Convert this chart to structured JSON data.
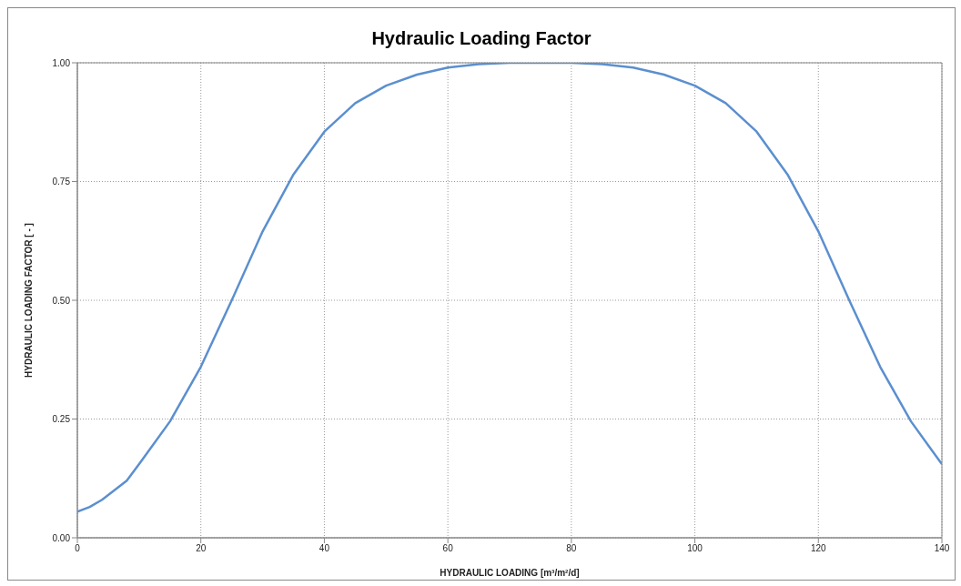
{
  "chart_data": {
    "type": "line",
    "title": "Hydraulic Loading Factor",
    "xlabel": "HYDRAULIC LOADING [m³/m²/d]",
    "ylabel": "HYDRAULIC LOADING FACTOR [ - ]",
    "x": [
      0,
      2,
      4,
      8,
      10,
      15,
      20,
      25,
      30,
      35,
      40,
      45,
      50,
      55,
      60,
      65,
      70,
      75,
      80,
      85,
      90,
      95,
      100,
      105,
      110,
      115,
      120,
      125,
      130,
      135,
      140
    ],
    "series": [
      {
        "color": "#5b8fcf",
        "values": [
          0.055,
          0.065,
          0.08,
          0.12,
          0.155,
          0.245,
          0.36,
          0.5,
          0.645,
          0.765,
          0.855,
          0.915,
          0.952,
          0.975,
          0.99,
          0.997,
          1.0,
          1.0,
          1.0,
          0.997,
          0.99,
          0.975,
          0.952,
          0.915,
          0.855,
          0.765,
          0.645,
          0.5,
          0.36,
          0.245,
          0.155
        ]
      }
    ],
    "xlim": [
      0,
      140
    ],
    "xticks": [
      0,
      20,
      40,
      60,
      80,
      100,
      120,
      140
    ],
    "ylim": [
      0,
      1
    ],
    "yticks": [
      {
        "value": 0,
        "label": "0.00"
      },
      {
        "value": 0.25,
        "label": "0.25"
      },
      {
        "value": 0.5,
        "label": "0.50"
      },
      {
        "value": 0.75,
        "label": "0.75"
      },
      {
        "value": 1,
        "label": "1.00"
      }
    ],
    "grid": true,
    "legend": false,
    "marker": "none",
    "line_style": "solid"
  }
}
